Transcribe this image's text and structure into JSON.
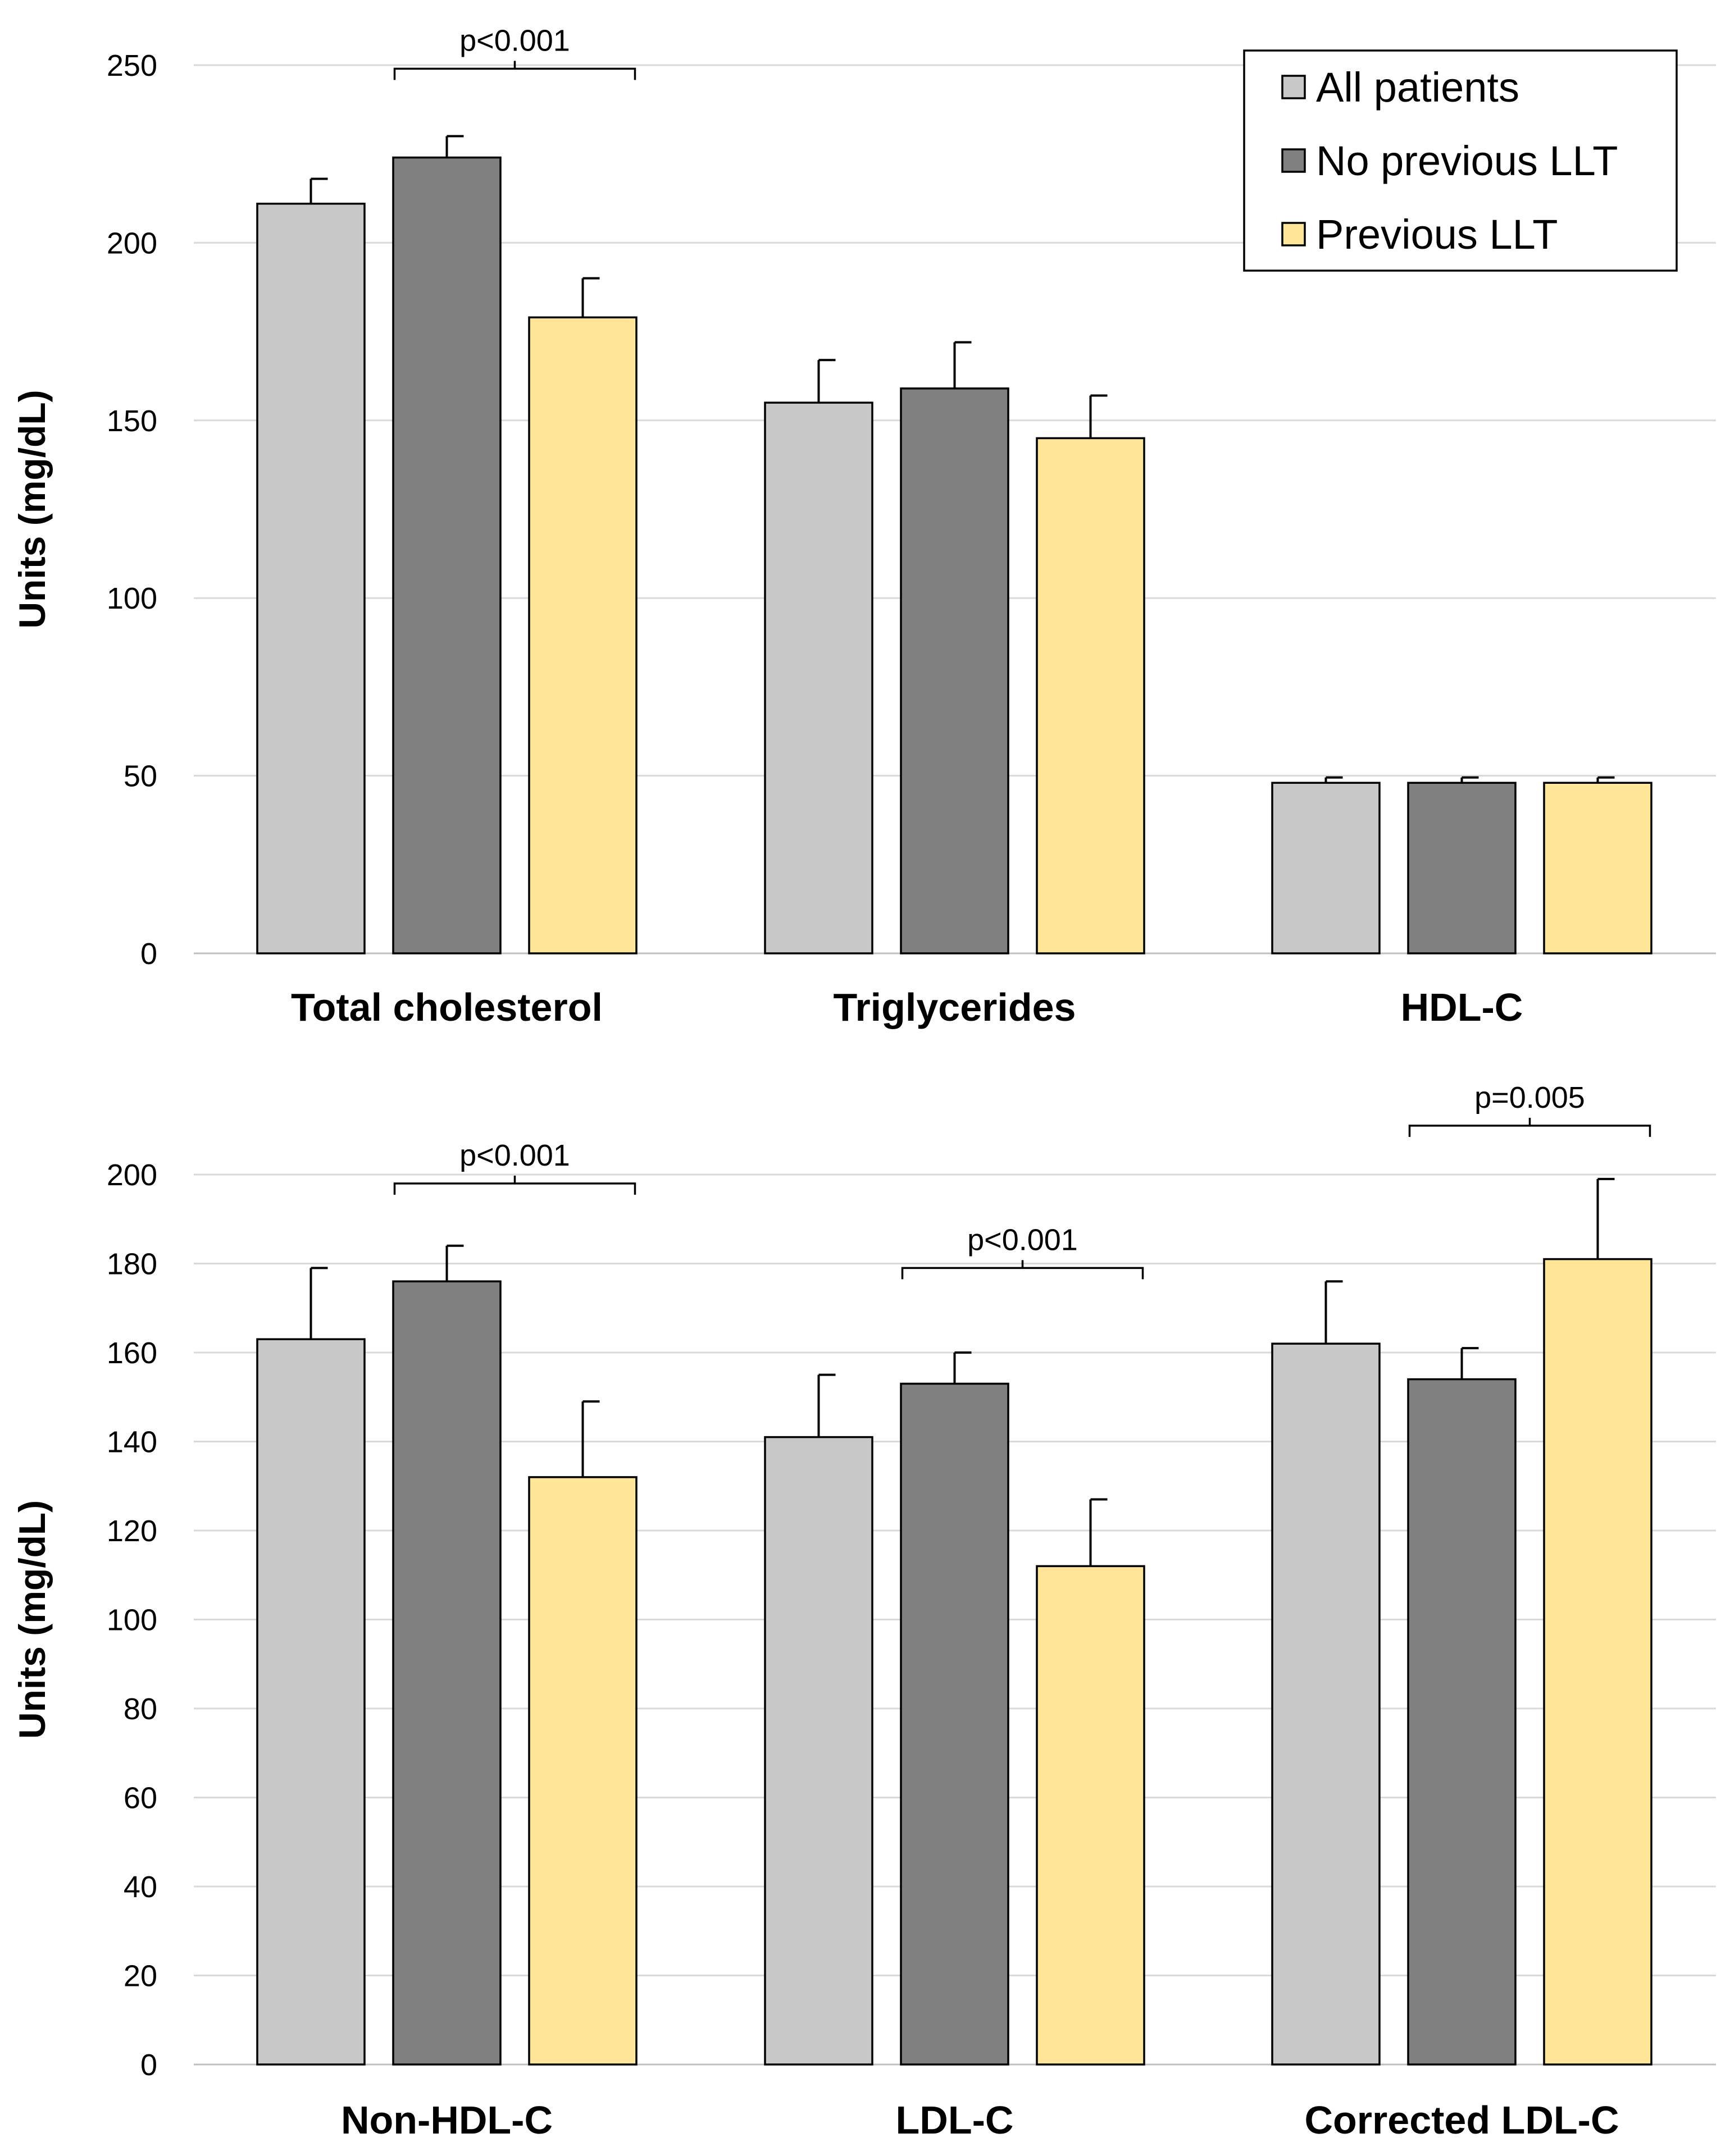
{
  "legend": {
    "entries": [
      {
        "name": "All patients",
        "color": "#c8c8c8"
      },
      {
        "name": "No previous LLT",
        "color": "#808080"
      },
      {
        "name": "Previous LLT",
        "color": "#ffe699"
      }
    ]
  },
  "chart_data": [
    {
      "type": "bar",
      "title": "",
      "xlabel": "",
      "ylabel": "Units (mg/dL)",
      "ylim": [
        0,
        250
      ],
      "yticks": [
        0,
        50,
        100,
        150,
        200,
        250
      ],
      "grid": true,
      "legend_position": "top-right",
      "categories": [
        "Total cholesterol",
        "Triglycerides",
        "HDL-C"
      ],
      "series": [
        {
          "name": "All patients",
          "values": [
            211,
            155,
            48
          ],
          "error": [
            7,
            12,
            1.5
          ]
        },
        {
          "name": "No previous LLT",
          "values": [
            224,
            159,
            48
          ],
          "error": [
            6,
            13,
            1.5
          ]
        },
        {
          "name": "Previous LLT",
          "values": [
            179,
            145,
            48
          ],
          "error": [
            11,
            12,
            1.5
          ]
        }
      ],
      "annotations": [
        {
          "text": "p<0.001",
          "category": 0,
          "from_series": 1,
          "to_series": 2,
          "level": 249
        }
      ]
    },
    {
      "type": "bar",
      "title": "",
      "xlabel": "",
      "ylabel": "Units (mg/dL)",
      "ylim": [
        0,
        200
      ],
      "yticks": [
        0,
        20,
        40,
        60,
        80,
        100,
        120,
        140,
        160,
        180,
        200
      ],
      "grid": true,
      "categories": [
        "Non-HDL-C",
        "LDL-C",
        "Corrected LDL-C"
      ],
      "series": [
        {
          "name": "All patients",
          "values": [
            163,
            141,
            162
          ],
          "error": [
            16,
            14,
            14
          ]
        },
        {
          "name": "No previous LLT",
          "values": [
            176,
            153,
            154
          ],
          "error": [
            8,
            7,
            7
          ]
        },
        {
          "name": "Previous LLT",
          "values": [
            132,
            112,
            181
          ],
          "error": [
            17,
            15,
            18
          ]
        }
      ],
      "annotations": [
        {
          "text": "p<0.001",
          "category": 0,
          "from_series": 1,
          "to_series": 2,
          "level": 198
        },
        {
          "text": "p<0.001",
          "category": 1,
          "from_series": 1,
          "to_series": 2,
          "level": 179
        },
        {
          "text": "p=0.005",
          "category": 2,
          "from_series": 1,
          "to_series": 2,
          "level": 211
        }
      ]
    }
  ]
}
